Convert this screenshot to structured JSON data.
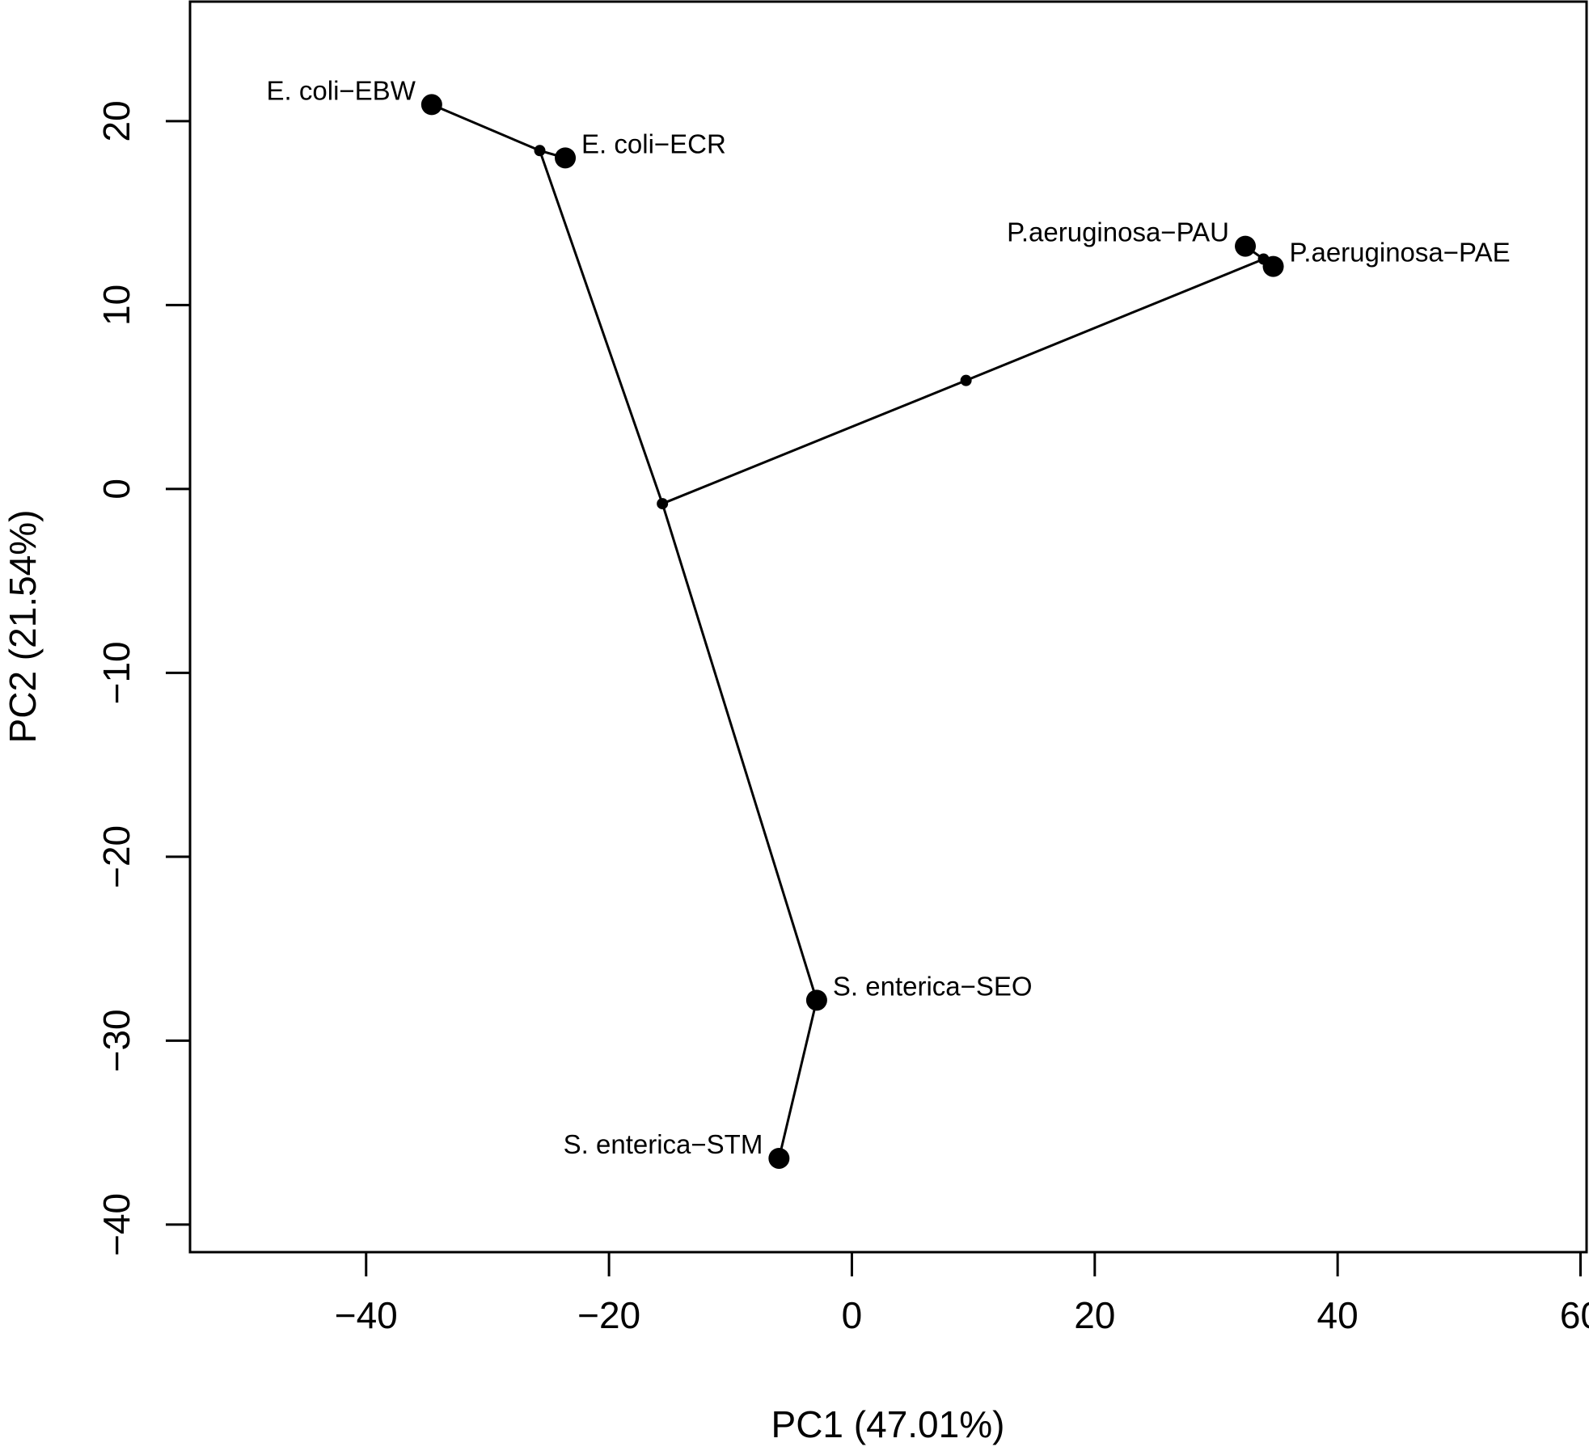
{
  "chart_data": {
    "type": "scatter",
    "title": "",
    "xlabel": "PC1 (47.01%)",
    "ylabel": "PC2 (21.54%)",
    "xlim": [
      -54.5,
      60.5
    ],
    "ylim": [
      -41.5,
      26.5
    ],
    "xticks": [
      -40,
      -20,
      0,
      20,
      40,
      60
    ],
    "yticks": [
      -40,
      -30,
      -20,
      -10,
      0,
      10,
      20
    ],
    "xtick_labels": [
      "−40",
      "−20",
      "0",
      "20",
      "40",
      "60"
    ],
    "ytick_labels": [
      "−40",
      "−30",
      "−20",
      "−10",
      "0",
      "10",
      "20"
    ],
    "grid": false,
    "legend": "none",
    "points": [
      {
        "id": "ebw",
        "label": "E. coli−EBW",
        "x": -34.6,
        "y": 20.9,
        "label_side": "left"
      },
      {
        "id": "ecr",
        "label": "E. coli−ECR",
        "x": -23.6,
        "y": 18.0,
        "label_side": "right"
      },
      {
        "id": "pau",
        "label": "P.aeruginosa−PAU",
        "x": 32.4,
        "y": 13.2,
        "label_side": "left"
      },
      {
        "id": "pae",
        "label": "P.aeruginosa−PAE",
        "x": 34.7,
        "y": 12.1,
        "label_side": "right"
      },
      {
        "id": "seo",
        "label": "S. enterica−SEO",
        "x": -2.9,
        "y": -27.8,
        "label_side": "right"
      },
      {
        "id": "stm",
        "label": "S. enterica−STM",
        "x": -6.0,
        "y": -36.4,
        "label_side": "left"
      }
    ],
    "internal_nodes": [
      {
        "id": "n_ecoli",
        "x": -25.7,
        "y": 18.4
      },
      {
        "id": "n_root",
        "x": -15.6,
        "y": -0.8
      },
      {
        "id": "n_mid",
        "x": 9.4,
        "y": 5.9
      },
      {
        "id": "n_paer",
        "x": 33.9,
        "y": 12.5
      }
    ],
    "edges": [
      [
        "ebw",
        "n_ecoli"
      ],
      [
        "n_ecoli",
        "ecr"
      ],
      [
        "n_ecoli",
        "n_root"
      ],
      [
        "n_root",
        "n_mid"
      ],
      [
        "n_mid",
        "n_paer"
      ],
      [
        "n_paer",
        "pau"
      ],
      [
        "n_paer",
        "pae"
      ],
      [
        "n_root",
        "seo"
      ],
      [
        "seo",
        "stm"
      ]
    ]
  }
}
